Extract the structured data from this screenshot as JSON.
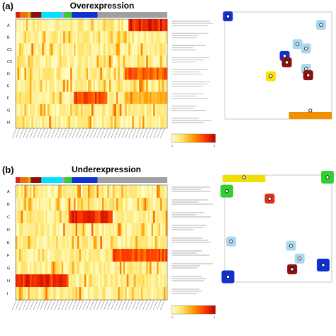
{
  "figure": {
    "panels": [
      {
        "letter": "(a)",
        "title": "Overexpression"
      },
      {
        "letter": "(b)",
        "title": "Underexpression"
      }
    ]
  },
  "chart_data": [
    {
      "type": "heatmap",
      "title": "Overexpression",
      "rows": [
        "A",
        "B",
        "C1",
        "C2",
        "D",
        "E",
        "F",
        "G",
        "H"
      ],
      "n_columns": 86,
      "colorscale": [
        "#ffffc8",
        "#ffe060",
        "#ff9a00",
        "#ff3a00",
        "#c00000"
      ],
      "value_range": [
        0,
        1
      ],
      "column_group_colors": [
        "#e02020",
        "#f07000",
        "#c8b400",
        "#8b1010",
        "#00e0ff",
        "#ff70c0",
        "#30d030",
        "#1030d0",
        "#a0a0a0"
      ],
      "row_pattern_peaks": [
        {
          "row": "A",
          "cols": [
            64,
            86
          ],
          "level": 0.9
        },
        {
          "row": "D",
          "cols": [
            62,
            86
          ],
          "level": 0.7
        },
        {
          "row": "F",
          "cols": [
            33,
            52
          ],
          "level": 0.75
        },
        {
          "row": "F",
          "cols": [
            62,
            86
          ],
          "level": 0.45
        }
      ],
      "legend": {
        "tick_left": "0",
        "tick_right": "1"
      }
    },
    {
      "type": "heatmap",
      "title": "Underexpression",
      "rows": [
        "A",
        "B",
        "C",
        "D",
        "E",
        "F",
        "G",
        "H",
        "I"
      ],
      "n_columns": 86,
      "colorscale": [
        "#ffffc8",
        "#ffe060",
        "#ff9a00",
        "#ff3a00",
        "#c00000"
      ],
      "value_range": [
        0,
        1
      ],
      "column_group_colors": [
        "#e02020",
        "#f07000",
        "#c8b400",
        "#8b1010",
        "#00e0ff",
        "#ff70c0",
        "#30d030",
        "#1030d0",
        "#a0a0a0"
      ],
      "row_pattern_peaks": [
        {
          "row": "C",
          "cols": [
            30,
            55
          ],
          "level": 0.85
        },
        {
          "row": "F",
          "cols": [
            55,
            86
          ],
          "level": 0.75
        },
        {
          "row": "H",
          "cols": [
            0,
            30
          ],
          "level": 0.85
        }
      ],
      "legend": {
        "tick_left": "0",
        "tick_right": "1"
      }
    },
    {
      "type": "scatter",
      "subtype": "cluster-map",
      "panel": "a",
      "clusters": [
        {
          "x": 0.03,
          "y": 0.96,
          "shape": "blob",
          "color": "#1030d0"
        },
        {
          "x": 0.43,
          "y": 0.4,
          "shape": "blob",
          "color": "#ffe000"
        },
        {
          "x": 0.9,
          "y": 0.88,
          "shape": "blob",
          "color": "#aad8ee"
        },
        {
          "x": 0.68,
          "y": 0.7,
          "shape": "blob",
          "color": "#aad8ee"
        },
        {
          "x": 0.76,
          "y": 0.66,
          "shape": "blob",
          "color": "#aad8ee"
        },
        {
          "x": 0.56,
          "y": 0.59,
          "shape": "blob",
          "color": "#1030d0"
        },
        {
          "x": 0.58,
          "y": 0.53,
          "shape": "blob",
          "color": "#8b1010"
        },
        {
          "x": 0.76,
          "y": 0.47,
          "shape": "blob",
          "color": "#aad8ee"
        },
        {
          "x": 0.78,
          "y": 0.41,
          "shape": "blob",
          "color": "#8b1010"
        },
        {
          "x": 0.8,
          "y": 0.08,
          "shape": "edge-band",
          "color": "#f09000"
        }
      ]
    },
    {
      "type": "scatter",
      "subtype": "cluster-map",
      "panel": "b",
      "clusters": [
        {
          "x": 0.02,
          "y": 0.85,
          "shape": "edge-blob",
          "color": "#30d030"
        },
        {
          "x": 0.18,
          "y": 0.98,
          "shape": "edge-band",
          "color": "#f0e000"
        },
        {
          "x": 0.42,
          "y": 0.78,
          "shape": "blob",
          "color": "#e03020"
        },
        {
          "x": 0.06,
          "y": 0.38,
          "shape": "blob",
          "color": "#aad8ee"
        },
        {
          "x": 0.03,
          "y": 0.05,
          "shape": "edge-blob",
          "color": "#1030d0"
        },
        {
          "x": 0.62,
          "y": 0.34,
          "shape": "blob",
          "color": "#aad8ee"
        },
        {
          "x": 0.7,
          "y": 0.22,
          "shape": "blob",
          "color": "#aad8ee"
        },
        {
          "x": 0.63,
          "y": 0.12,
          "shape": "blob",
          "color": "#8b1010"
        },
        {
          "x": 0.92,
          "y": 0.16,
          "shape": "edge-blob",
          "color": "#1030d0"
        },
        {
          "x": 0.96,
          "y": 0.98,
          "shape": "edge-blob",
          "color": "#30d030"
        }
      ]
    }
  ]
}
